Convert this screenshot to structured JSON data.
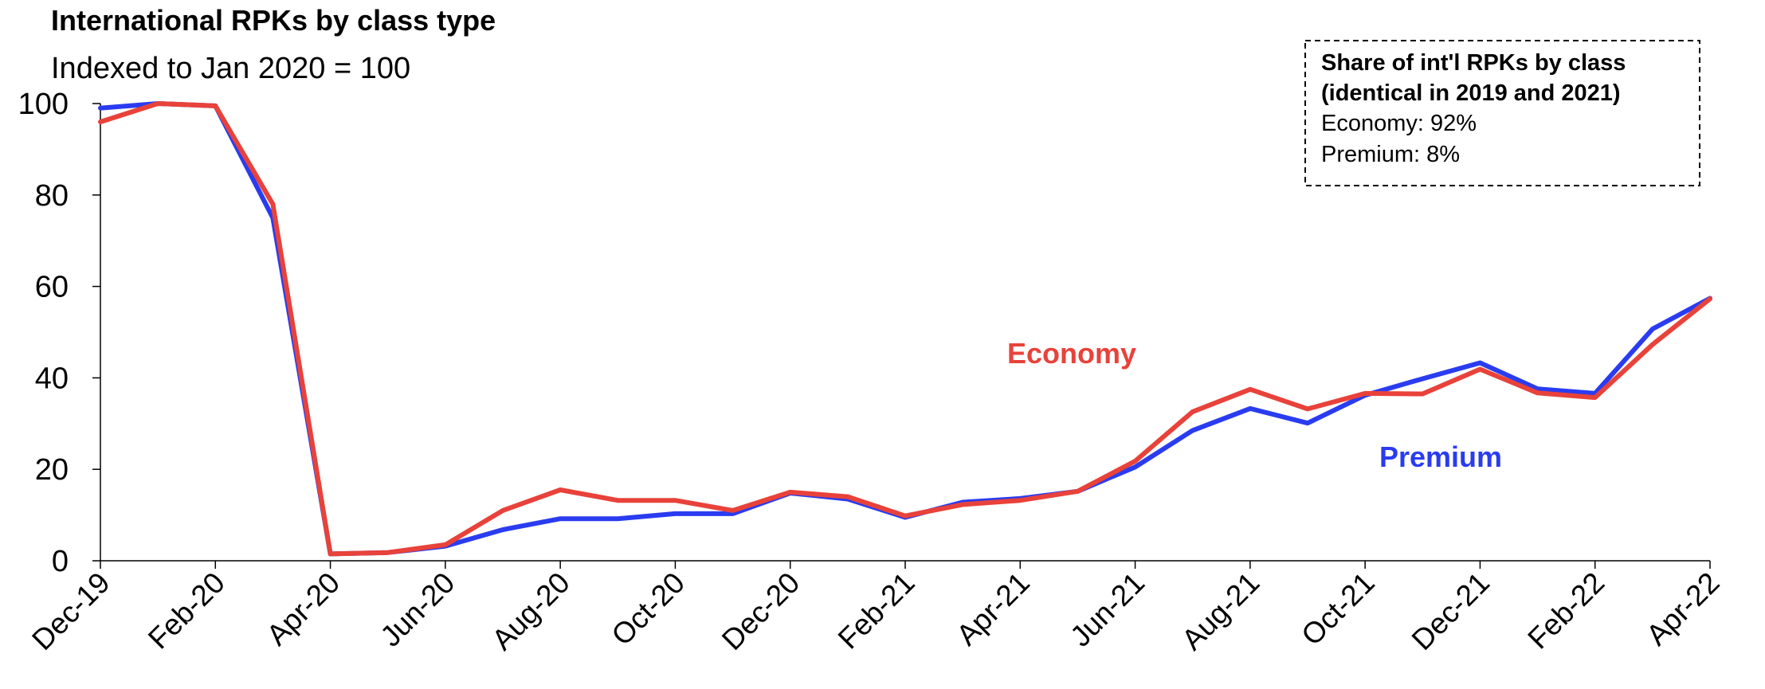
{
  "chart_data": {
    "type": "line",
    "title": "International RPKs by class type",
    "subtitle": "Indexed to Jan 2020 = 100",
    "xlabel": "",
    "ylabel": "",
    "ylim": [
      0,
      100
    ],
    "y_ticks": [
      0,
      20,
      40,
      60,
      80,
      100
    ],
    "x": [
      "Dec-19",
      "Jan-20",
      "Feb-20",
      "Mar-20",
      "Apr-20",
      "May-20",
      "Jun-20",
      "Jul-20",
      "Aug-20",
      "Sep-20",
      "Oct-20",
      "Nov-20",
      "Dec-20",
      "Jan-21",
      "Feb-21",
      "Mar-21",
      "Apr-21",
      "May-21",
      "Jun-21",
      "Jul-21",
      "Aug-21",
      "Sep-21",
      "Oct-21",
      "Nov-21",
      "Dec-21",
      "Jan-22",
      "Feb-22",
      "Mar-22",
      "Apr-22"
    ],
    "x_tick_labels": [
      "Dec-19",
      "Feb-20",
      "Apr-20",
      "Jun-20",
      "Aug-20",
      "Oct-20",
      "Dec-20",
      "Feb-21",
      "Apr-21",
      "Jun-21",
      "Aug-21",
      "Oct-21",
      "Dec-21",
      "Feb-22",
      "Apr-22"
    ],
    "series": [
      {
        "name": "Economy",
        "color": "#e8423a",
        "values": [
          96,
          100,
          99.5,
          78,
          1.5,
          1.8,
          3.5,
          11,
          15.5,
          13.2,
          13.2,
          11,
          15,
          14,
          9.8,
          12.3,
          13.2,
          15.2,
          21.8,
          32.6,
          37.5,
          33.2,
          36.6,
          36.5,
          41.9,
          36.7,
          35.7,
          47.3,
          57.3
        ]
      },
      {
        "name": "Premium",
        "color": "#2a3cf0",
        "values": [
          99,
          100,
          99.5,
          75,
          1.5,
          1.8,
          3.2,
          6.8,
          9.2,
          9.2,
          10.3,
          10.3,
          14.8,
          13.5,
          9.5,
          12.8,
          13.6,
          15.2,
          20.5,
          28.5,
          33.3,
          30.1,
          36.2,
          39.8,
          43.3,
          37.6,
          36.6,
          50.7,
          57.4
        ]
      }
    ],
    "annotation": {
      "title_line1": "Share of int'l RPKs by class",
      "title_line2": "(identical in 2019 and 2021)",
      "line1": "Economy: 92%",
      "line2": "Premium:  8%"
    },
    "grid": false
  }
}
